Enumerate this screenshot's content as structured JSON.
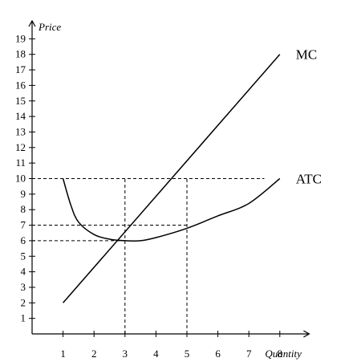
{
  "chart_data": {
    "type": "line",
    "title": "",
    "xlabel": "Quantity",
    "ylabel": "Price",
    "xlim": [
      0,
      9
    ],
    "ylim": [
      0,
      20
    ],
    "x_ticks": [
      1,
      2,
      3,
      4,
      5,
      6,
      7,
      8
    ],
    "y_ticks": [
      1,
      2,
      3,
      4,
      5,
      6,
      7,
      8,
      9,
      10,
      11,
      12,
      13,
      14,
      15,
      16,
      17,
      18,
      19
    ],
    "grid": false,
    "legend": "none",
    "series": [
      {
        "name": "MC",
        "color": "#000000",
        "x": [
          1,
          8
        ],
        "y": [
          2,
          18
        ]
      },
      {
        "name": "ATC",
        "color": "#000000",
        "x": [
          1,
          1.25,
          1.5,
          2,
          2.5,
          3,
          3.5,
          4,
          5,
          6,
          7,
          8
        ],
        "y": [
          10,
          8.3,
          7.2,
          6.4,
          6.1,
          6.0,
          6.0,
          6.2,
          6.8,
          7.6,
          8.4,
          10.0
        ]
      }
    ],
    "reference_lines": [
      {
        "x_from": 0,
        "x_to": 7.5,
        "y": 10
      },
      {
        "x_from": 0,
        "x_to": 5,
        "y": 7
      },
      {
        "x_from": 0,
        "x_to": 3,
        "y": 6
      },
      {
        "x": 3,
        "y_from": 0,
        "y_to": 10
      },
      {
        "x": 5,
        "y_from": 0,
        "y_to": 10
      }
    ]
  }
}
